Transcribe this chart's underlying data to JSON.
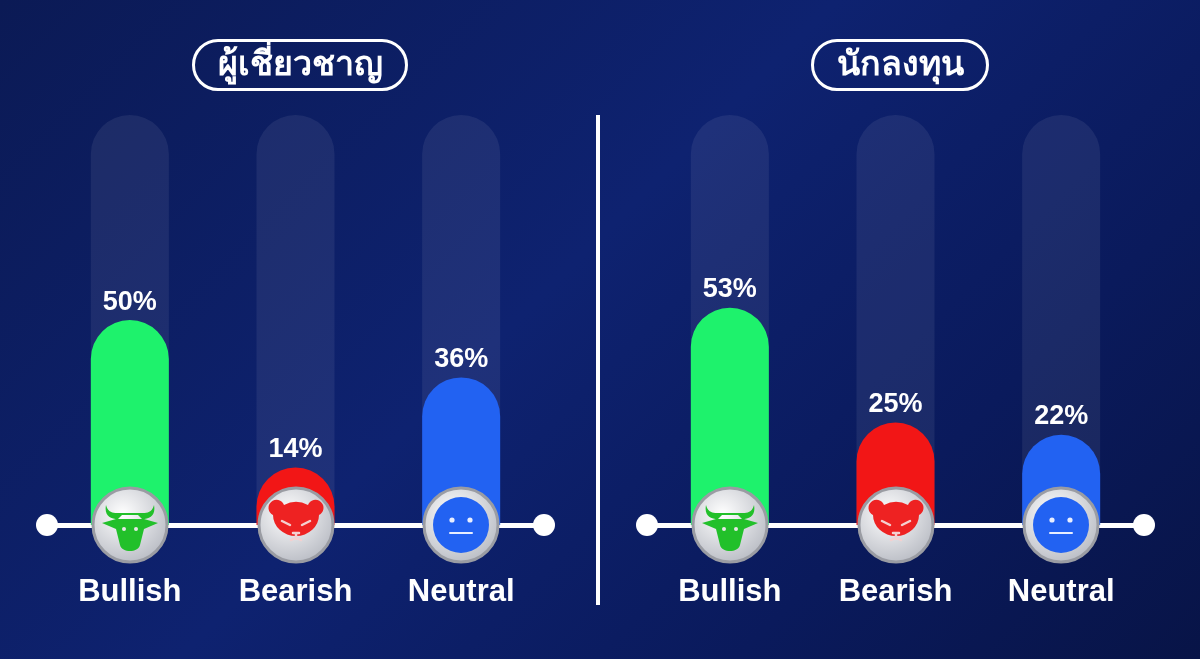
{
  "chart_data": [
    {
      "type": "bar",
      "title": "ผู้เชี่ยวชาญ",
      "categories": [
        "Bullish",
        "Bearish",
        "Neutral"
      ],
      "values": [
        50,
        14,
        36
      ],
      "colors": [
        "#1ef26c",
        "#f21616",
        "#2262f2"
      ],
      "value_labels": [
        "50%",
        "14%",
        "36%"
      ],
      "ylim": [
        0,
        100
      ],
      "tick_labels": "x"
    },
    {
      "type": "bar",
      "title": "นักลงทุน",
      "categories": [
        "Bullish",
        "Bearish",
        "Neutral"
      ],
      "values": [
        53,
        25,
        22
      ],
      "colors": [
        "#1ef26c",
        "#f21616",
        "#2262f2"
      ],
      "value_labels": [
        "53%",
        "25%",
        "22%"
      ],
      "ylim": [
        0,
        100
      ],
      "tick_labels": "x"
    }
  ]
}
